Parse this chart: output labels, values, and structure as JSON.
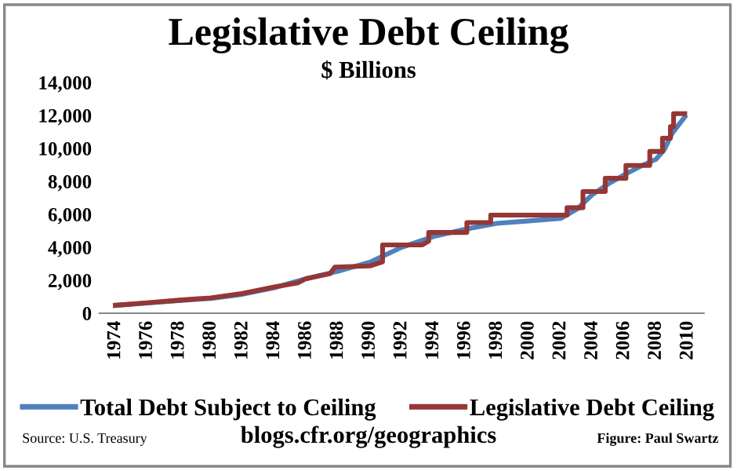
{
  "chart_data": {
    "type": "line",
    "title": "Legislative Debt Ceiling",
    "subtitle": "$ Billions",
    "series": [
      {
        "name": "Total Debt Subject to Ceiling",
        "color": "#4f81bd",
        "x": [
          1974,
          1976,
          1978,
          1980,
          1982,
          1984,
          1986,
          1988,
          1990,
          1992,
          1994,
          1996,
          1998,
          2000,
          2002,
          2003,
          2004,
          2005,
          2006,
          2007,
          2008,
          2008.5,
          2009,
          2009.8
        ],
        "values": [
          470,
          620,
          770,
          900,
          1150,
          1550,
          2100,
          2550,
          3100,
          4000,
          4650,
          5100,
          5450,
          5600,
          5750,
          6300,
          7200,
          7850,
          8400,
          8900,
          9350,
          9900,
          10900,
          11900
        ]
      },
      {
        "name": "Legislative Debt Ceiling",
        "color": "#953735",
        "x": [
          1974,
          1976,
          1978,
          1980,
          1982,
          1984,
          1985.5,
          1986,
          1987.5,
          1987.8,
          1990,
          1990.8,
          1990.8,
          1993.3,
          1993.7,
          1993.7,
          1996.1,
          1996.1,
          1997.6,
          1997.6,
          2002.4,
          2002.4,
          2003.4,
          2003.4,
          2004.8,
          2004.8,
          2006.1,
          2006.1,
          2007.6,
          2007.6,
          2008.4,
          2008.4,
          2008.9,
          2008.9,
          2009.1,
          2009.1,
          2009.8
        ],
        "values": [
          480,
          630,
          790,
          930,
          1200,
          1600,
          1850,
          2100,
          2400,
          2800,
          2870,
          3120,
          4145,
          4145,
          4370,
          4900,
          4900,
          5500,
          5500,
          5950,
          5950,
          6400,
          6400,
          7384,
          7384,
          8184,
          8184,
          8965,
          8965,
          9815,
          9815,
          10615,
          10615,
          11315,
          11315,
          12104,
          12104
        ]
      }
    ],
    "xlim": [
      1973,
      2011
    ],
    "xticks": [
      1974,
      1976,
      1978,
      1980,
      1982,
      1984,
      1986,
      1988,
      1990,
      1992,
      1994,
      1996,
      1998,
      2000,
      2002,
      2004,
      2006,
      2008,
      2010
    ],
    "ylim": [
      0,
      14000
    ],
    "yticks": [
      {
        "value": 0,
        "label": "0"
      },
      {
        "value": 2000,
        "label": "2,000"
      },
      {
        "value": 4000,
        "label": "4,000"
      },
      {
        "value": 6000,
        "label": "6,000"
      },
      {
        "value": 8000,
        "label": "8,000"
      },
      {
        "value": 10000,
        "label": "10,000"
      },
      {
        "value": 12000,
        "label": "12,000"
      },
      {
        "value": 14000,
        "label": "14,000"
      }
    ],
    "grid": false,
    "legend": "bottom",
    "annotations": [
      "Source: U.S. Treasury",
      "blogs.cfr.org/geographics",
      "Figure: Paul Swartz"
    ]
  }
}
